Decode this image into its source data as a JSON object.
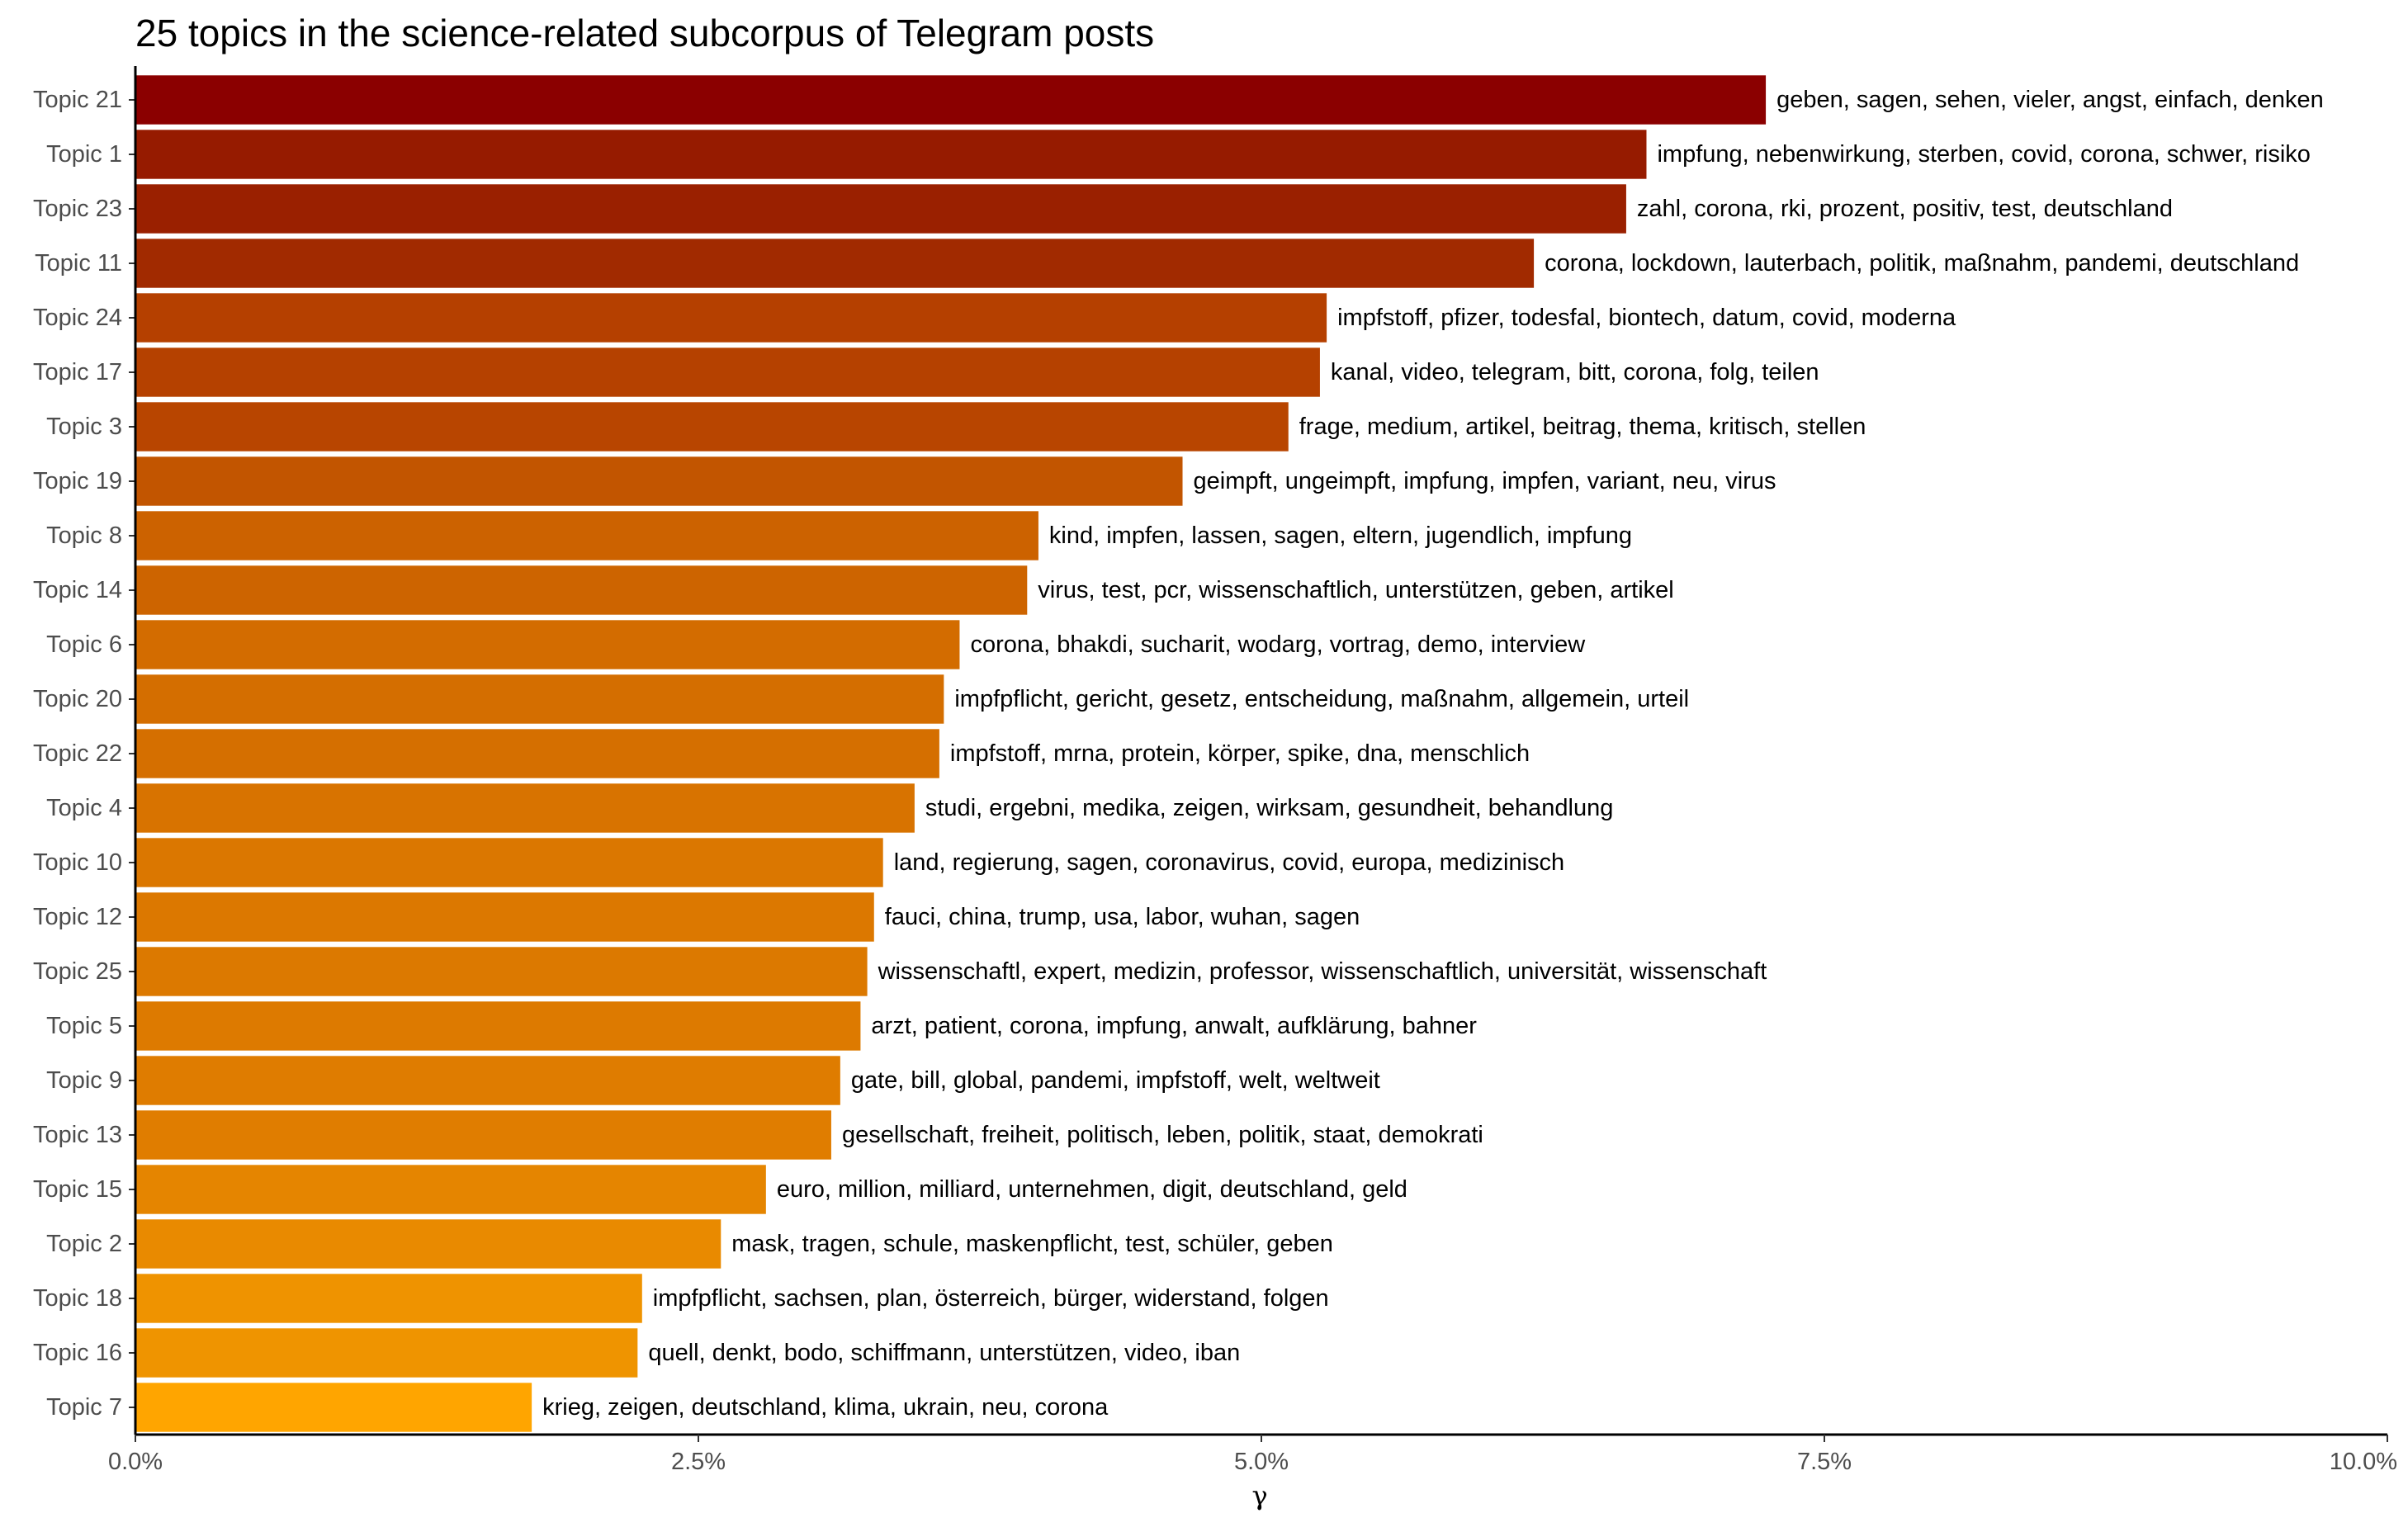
{
  "chart_data": {
    "type": "bar",
    "orientation": "horizontal",
    "title": "25 topics in the science-related subcorpus of Telegram posts",
    "xlabel": "γ",
    "ylabel": "",
    "xlim": [
      0,
      10
    ],
    "x_ticks": [
      {
        "value": 0,
        "label": "0.0%"
      },
      {
        "value": 2.5,
        "label": "2.5%"
      },
      {
        "value": 5,
        "label": "5.0%"
      },
      {
        "value": 7.5,
        "label": "7.5%"
      },
      {
        "value": 10,
        "label": "10.0%"
      }
    ],
    "grid": false,
    "legend": "none",
    "bars": [
      {
        "category": "Topic 21",
        "value": 7.24,
        "label": "geben, sagen, sehen, vieler, angst, einfach, denken",
        "color": "#8b0000"
      },
      {
        "category": "Topic 1",
        "value": 6.71,
        "label": "impfung, nebenwirkung, sterben, covid, corona, schwer, risiko",
        "color": "#961b00"
      },
      {
        "category": "Topic 23",
        "value": 6.62,
        "label": "zahl, corona, rki, prozent, positiv, test, deutschland",
        "color": "#9a2000"
      },
      {
        "category": "Topic 11",
        "value": 6.21,
        "label": "corona, lockdown, lauterbach, politik, maßnahm, pandemi, deutschland",
        "color": "#a12a00"
      },
      {
        "category": "Topic 24",
        "value": 5.29,
        "label": "impfstoff, pfizer, todesfal, biontech, datum, covid, moderna",
        "color": "#b54000"
      },
      {
        "category": "Topic 17",
        "value": 5.26,
        "label": "kanal, video, telegram, bitt, corona, folg, teilen",
        "color": "#b54100"
      },
      {
        "category": "Topic 3",
        "value": 5.12,
        "label": "frage, medium, artikel, beitrag, thema, kritisch, stellen",
        "color": "#b84500"
      },
      {
        "category": "Topic 19",
        "value": 4.65,
        "label": "geimpft, ungeimpft, impfung, impfen, variant, neu, virus",
        "color": "#c25500"
      },
      {
        "category": "Topic 8",
        "value": 4.01,
        "label": "kind, impfen, lassen, sagen, eltern, jugendlich, impfung",
        "color": "#cc6200"
      },
      {
        "category": "Topic 14",
        "value": 3.96,
        "label": "virus, test, pcr, wissenschaftlich, unterstützen, geben, artikel",
        "color": "#cd6400"
      },
      {
        "category": "Topic 6",
        "value": 3.66,
        "label": "corona, bhakdi, sucharit, wodarg, vortrag, demo, interview",
        "color": "#d36c00"
      },
      {
        "category": "Topic 20",
        "value": 3.59,
        "label": "impfpflicht, gericht, gesetz, entscheidung, maßnahm, allgemein, urteil",
        "color": "#d46e00"
      },
      {
        "category": "Topic 22",
        "value": 3.57,
        "label": "impfstoff, mrna, protein, körper, spike, dna, menschlich",
        "color": "#d56f00"
      },
      {
        "category": "Topic 4",
        "value": 3.46,
        "label": "studi, ergebni, medika, zeigen, wirksam, gesundheit, behandlung",
        "color": "#d87300"
      },
      {
        "category": "Topic 10",
        "value": 3.32,
        "label": "land, regierung, sagen, coronavirus, covid, europa, medizinisch",
        "color": "#db7700"
      },
      {
        "category": "Topic 12",
        "value": 3.28,
        "label": "fauci, china, trump, usa, labor, wuhan, sagen",
        "color": "#dc7800"
      },
      {
        "category": "Topic 25",
        "value": 3.25,
        "label": "wissenschaftl, expert, medizin, professor, wissenschaftlich, universität, wissenschaft",
        "color": "#dc7900"
      },
      {
        "category": "Topic 5",
        "value": 3.22,
        "label": "arzt, patient, corona, impfung, anwalt, aufklärung, bahner",
        "color": "#dd7a00"
      },
      {
        "category": "Topic 9",
        "value": 3.13,
        "label": "gate, bill, global, pandemi, impfstoff, welt, weltweit",
        "color": "#df7c00"
      },
      {
        "category": "Topic 13",
        "value": 3.09,
        "label": "gesellschaft, freiheit, politisch, leben, politik, staat, demokrati",
        "color": "#e07d00"
      },
      {
        "category": "Topic 15",
        "value": 2.8,
        "label": "euro, million, milliard, unternehmen, digit, deutschland, geld",
        "color": "#e58500"
      },
      {
        "category": "Topic 2",
        "value": 2.6,
        "label": "mask, tragen, schule, maskenpflicht, test, schüler, geben",
        "color": "#e98a00"
      },
      {
        "category": "Topic 18",
        "value": 2.25,
        "label": "impfpflicht, sachsen, plan, österreich, bürger, widerstand, folgen",
        "color": "#ef9300"
      },
      {
        "category": "Topic 16",
        "value": 2.23,
        "label": "quell, denkt, bodo, schiffmann, unterstützen, video, iban",
        "color": "#ef9400"
      },
      {
        "category": "Topic 7",
        "value": 1.76,
        "label": "krieg, zeigen, deutschland, klima, ukrain, neu, corona",
        "color": "#ffa500"
      }
    ]
  }
}
